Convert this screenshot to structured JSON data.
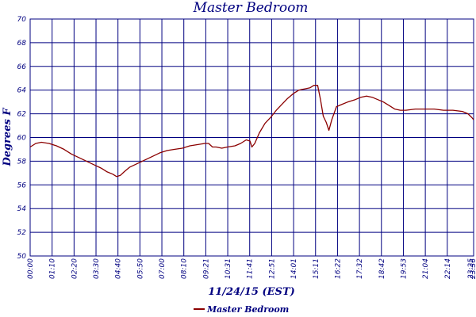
{
  "chart_data": {
    "type": "line",
    "title": "Master Bedroom",
    "xlabel": "11/24/15 (EST)",
    "ylabel": "Degrees F",
    "ylim": [
      50,
      70
    ],
    "y_ticks": [
      50,
      52,
      54,
      56,
      58,
      60,
      62,
      64,
      66,
      68,
      70
    ],
    "x_tick_labels": [
      "00:00",
      "01:10",
      "02:20",
      "03:30",
      "04:40",
      "05:50",
      "07:00",
      "08:10",
      "09:21",
      "10:31",
      "11:41",
      "12:51",
      "14:01",
      "15:11",
      "16:22",
      "17:32",
      "18:42",
      "19:53",
      "21:04",
      "22:14",
      "23:25",
      "23:36"
    ],
    "grid": true,
    "legend_position": "bottom-center",
    "colors": {
      "series": "#8b0000",
      "grid": "#000080",
      "text": "#000080"
    },
    "series": [
      {
        "name": "Master Bedroom",
        "points": [
          [
            0.0,
            59.2
          ],
          [
            0.3,
            59.5
          ],
          [
            0.6,
            59.6
          ],
          [
            1.0,
            59.5
          ],
          [
            1.4,
            59.3
          ],
          [
            1.8,
            59.0
          ],
          [
            2.2,
            58.6
          ],
          [
            2.6,
            58.3
          ],
          [
            3.0,
            58.0
          ],
          [
            3.4,
            57.7
          ],
          [
            3.8,
            57.4
          ],
          [
            4.1,
            57.1
          ],
          [
            4.4,
            56.9
          ],
          [
            4.6,
            56.7
          ],
          [
            4.8,
            56.8
          ],
          [
            5.0,
            57.1
          ],
          [
            5.3,
            57.5
          ],
          [
            5.7,
            57.8
          ],
          [
            6.1,
            58.1
          ],
          [
            6.5,
            58.4
          ],
          [
            6.9,
            58.7
          ],
          [
            7.3,
            58.9
          ],
          [
            7.7,
            59.0
          ],
          [
            8.1,
            59.1
          ],
          [
            8.5,
            59.3
          ],
          [
            8.9,
            59.4
          ],
          [
            9.3,
            59.5
          ],
          [
            9.5,
            59.5
          ],
          [
            9.7,
            59.2
          ],
          [
            9.9,
            59.2
          ],
          [
            10.2,
            59.1
          ],
          [
            10.5,
            59.2
          ],
          [
            10.9,
            59.3
          ],
          [
            11.2,
            59.5
          ],
          [
            11.5,
            59.8
          ],
          [
            11.7,
            59.7
          ],
          [
            11.8,
            59.2
          ],
          [
            11.95,
            59.5
          ],
          [
            12.2,
            60.4
          ],
          [
            12.5,
            61.2
          ],
          [
            12.8,
            61.7
          ],
          [
            13.1,
            62.3
          ],
          [
            13.4,
            62.8
          ],
          [
            13.7,
            63.3
          ],
          [
            14.0,
            63.7
          ],
          [
            14.3,
            64.0
          ],
          [
            14.6,
            64.1
          ],
          [
            14.9,
            64.2
          ],
          [
            15.1,
            64.4
          ],
          [
            15.3,
            64.4
          ],
          [
            15.45,
            63.2
          ],
          [
            15.6,
            61.8
          ],
          [
            15.75,
            61.3
          ],
          [
            15.9,
            60.6
          ],
          [
            16.05,
            61.5
          ],
          [
            16.3,
            62.6
          ],
          [
            16.6,
            62.8
          ],
          [
            16.9,
            63.0
          ],
          [
            17.3,
            63.2
          ],
          [
            17.6,
            63.4
          ],
          [
            17.9,
            63.5
          ],
          [
            18.2,
            63.4
          ],
          [
            18.5,
            63.2
          ],
          [
            18.8,
            63.0
          ],
          [
            19.1,
            62.7
          ],
          [
            19.4,
            62.4
          ],
          [
            19.7,
            62.3
          ],
          [
            20.0,
            62.3
          ],
          [
            20.5,
            62.4
          ],
          [
            21.0,
            62.4
          ],
          [
            21.5,
            62.4
          ],
          [
            22.0,
            62.3
          ],
          [
            22.5,
            62.3
          ],
          [
            23.0,
            62.2
          ],
          [
            23.3,
            62.0
          ],
          [
            23.5,
            61.7
          ],
          [
            23.6,
            61.5
          ]
        ]
      }
    ]
  }
}
